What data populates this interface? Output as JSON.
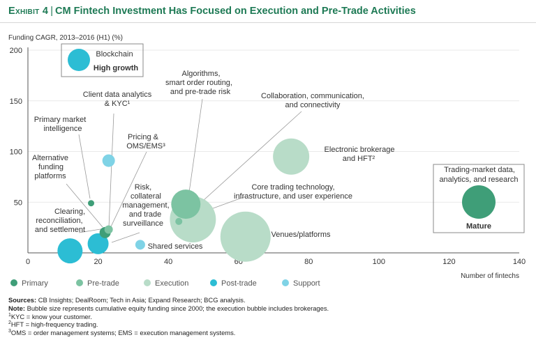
{
  "header": {
    "exhibit": "Exhibit 4",
    "title": "CM Fintech Investment Has Focused on Execution and Pre-Trade Activities"
  },
  "colors": {
    "primary": "#3f9e78",
    "pre_trade": "#7cc3a2",
    "execution": "#b8dcc8",
    "post_trade": "#2cbdd4",
    "support": "#7fd3e6"
  },
  "chart_data": {
    "type": "scatter",
    "ylabel": "Funding CAGR, 2013–2016 (H1) (%)",
    "xlabel": "Number of fintechs",
    "xlim": [
      0,
      140
    ],
    "ylim": [
      0,
      200
    ],
    "xticks": [
      0,
      20,
      40,
      60,
      80,
      100,
      120,
      140
    ],
    "yticks": [
      50,
      100,
      150,
      200
    ],
    "legend": [
      {
        "name": "Primary",
        "color": "#3f9e78"
      },
      {
        "name": "Pre-trade",
        "color": "#7cc3a2"
      },
      {
        "name": "Execution",
        "color": "#b8dcc8"
      },
      {
        "name": "Post-trade",
        "color": "#2cbdd4"
      },
      {
        "name": "Support",
        "color": "#7fd3e6"
      }
    ],
    "points": [
      {
        "label": "Clearing, reconciliation, and settlement",
        "category": "Post-trade",
        "x": 12,
        "y": 2
      },
      {
        "label": "Alternative funding platforms",
        "category": "Primary",
        "x": 22,
        "y": 20
      },
      {
        "label": "Primary market intelligence",
        "category": "Primary",
        "x": 18,
        "y": 49
      },
      {
        "label": "Client data analytics & KYC¹",
        "category": "Pre-trade",
        "x": 23,
        "y": 23
      },
      {
        "label": "Pricing & OMS/EMS³",
        "category": "Support",
        "x": 23,
        "y": 91
      },
      {
        "label": "Risk, collateral management, and trade surveillance",
        "category": "Post-trade",
        "x": 20,
        "y": 9
      },
      {
        "label": "Shared services",
        "category": "Support",
        "x": 32,
        "y": 8
      },
      {
        "label": "Algorithms, smart order routing, and pre-trade risk",
        "category": "Pre-trade",
        "x": 45,
        "y": 48
      },
      {
        "label": "Collaboration, communication, and connectivity",
        "category": "Pre-trade",
        "x": 43,
        "y": 31
      },
      {
        "label": "Core trading technology, infrastructure, and user experience",
        "category": "Execution",
        "x": 47,
        "y": 33
      },
      {
        "label": "Venues/platforms",
        "category": "Execution",
        "x": 62,
        "y": 16
      },
      {
        "label": "Electronic brokerage and HFT²",
        "category": "Execution",
        "x": 75,
        "y": 95
      }
    ],
    "callouts": [
      {
        "label": "Blockchain",
        "value": "High growth",
        "category": "Post-trade"
      },
      {
        "label": "Trading-market data, analytics, and research",
        "value": "Mature",
        "category": "Pre-trade"
      }
    ]
  },
  "notes": {
    "sources_label": "Sources:",
    "sources": "CB Insights; DealRoom; Tech in Asia; Expand Research; BCG analysis.",
    "note_label": "Note:",
    "note": "Bubble size represents cumulative equity funding since 2000; the execution bubble includes brokerages.",
    "fn1_mark": "1",
    "fn1": "KYC = know your customer.",
    "fn2_mark": "2",
    "fn2": "HFT = high-frequency trading.",
    "fn3_mark": "3",
    "fn3": "OMS = order management systems; EMS = execution management systems."
  }
}
